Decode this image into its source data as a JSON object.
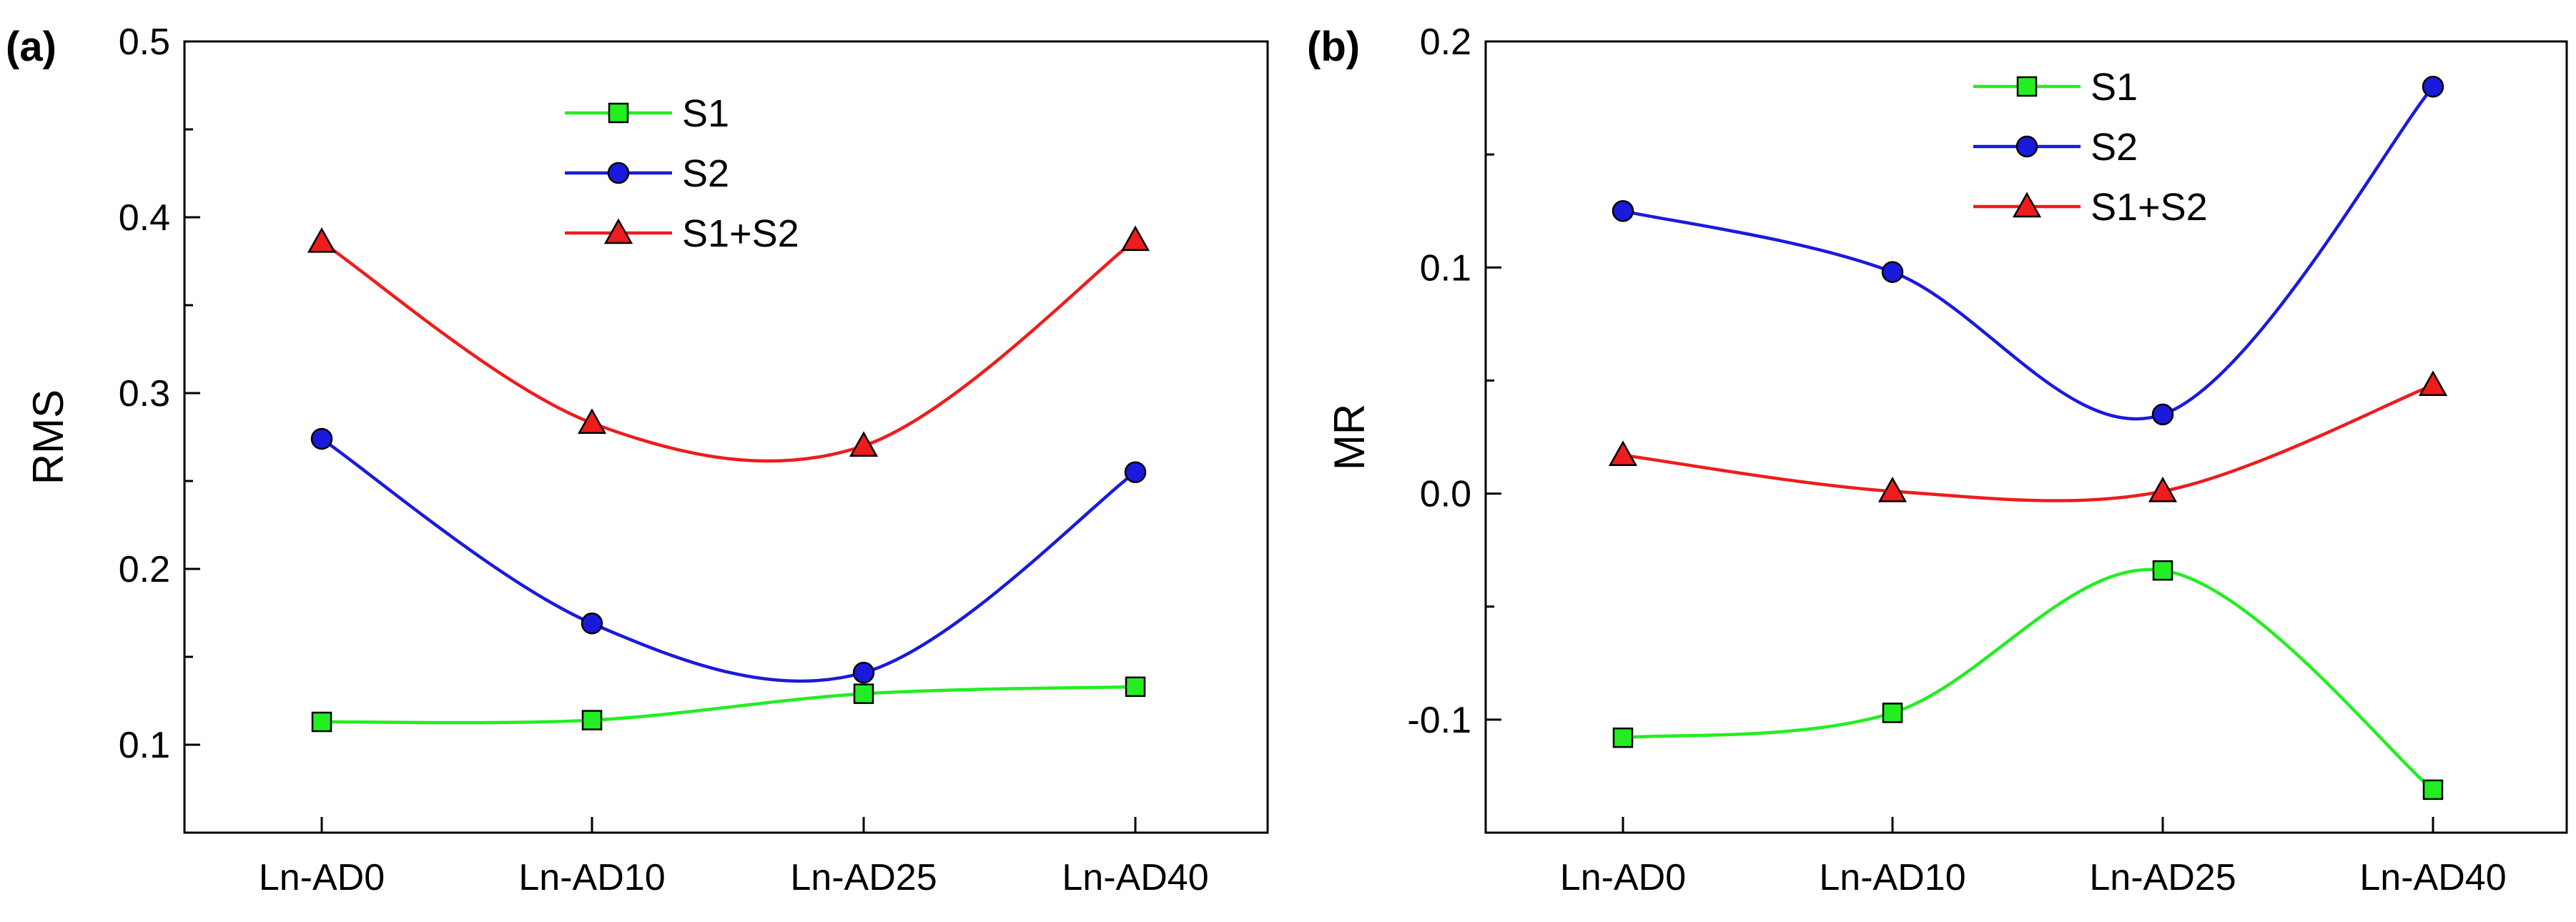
{
  "chart_data": [
    {
      "panel_label": "(a)",
      "type": "line",
      "smooth": true,
      "categories": [
        "Ln-AD0",
        "Ln-AD10",
        "Ln-AD25",
        "Ln-AD40"
      ],
      "ylabel": "RMS",
      "xlabel": "",
      "ylim": [
        0.05,
        0.5
      ],
      "yticks": [
        0.1,
        0.2,
        0.3,
        0.4,
        0.5
      ],
      "ytick_labels": [
        "0.1",
        "0.2",
        "0.3",
        "0.4",
        "0.5"
      ],
      "legend_position": "top-center",
      "series": [
        {
          "name": "S1",
          "color": "#22ee22",
          "marker": "square",
          "values": [
            0.113,
            0.114,
            0.129,
            0.133
          ]
        },
        {
          "name": "S2",
          "color": "#1a1adc",
          "marker": "circle",
          "values": [
            0.274,
            0.169,
            0.141,
            0.255
          ]
        },
        {
          "name": "S1+S2",
          "color": "#ee1c1c",
          "marker": "triangle",
          "values": [
            0.386,
            0.283,
            0.27,
            0.387
          ]
        }
      ]
    },
    {
      "panel_label": "(b)",
      "type": "line",
      "smooth": true,
      "categories": [
        "Ln-AD0",
        "Ln-AD10",
        "Ln-AD25",
        "Ln-AD40"
      ],
      "ylabel": "MR",
      "xlabel": "",
      "ylim": [
        -0.15,
        0.2
      ],
      "yticks": [
        -0.1,
        0.0,
        0.1,
        0.2
      ],
      "ytick_labels": [
        "-0.1",
        "0.0",
        "0.1",
        "0.2"
      ],
      "legend_position": "top-center",
      "series": [
        {
          "name": "S1",
          "color": "#22ee22",
          "marker": "square",
          "values": [
            -0.108,
            -0.097,
            -0.034,
            -0.131
          ]
        },
        {
          "name": "S2",
          "color": "#1a1adc",
          "marker": "circle",
          "values": [
            0.125,
            0.098,
            0.035,
            0.18
          ]
        },
        {
          "name": "S1+S2",
          "color": "#ee1c1c",
          "marker": "triangle",
          "values": [
            0.017,
            0.001,
            0.001,
            0.048
          ]
        }
      ]
    }
  ]
}
